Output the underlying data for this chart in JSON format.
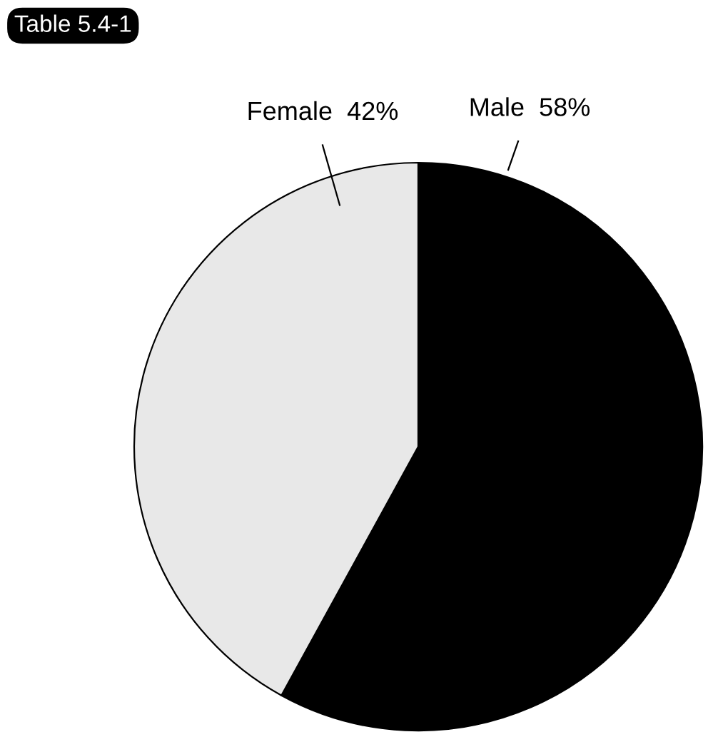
{
  "chart_data": {
    "type": "pie",
    "title": "Table 5.4-1",
    "categories": [
      "Male",
      "Female"
    ],
    "values": [
      58,
      42
    ],
    "value_labels": [
      "58%",
      "42%"
    ],
    "colors": [
      "#000000",
      "#e8e8e8"
    ]
  }
}
